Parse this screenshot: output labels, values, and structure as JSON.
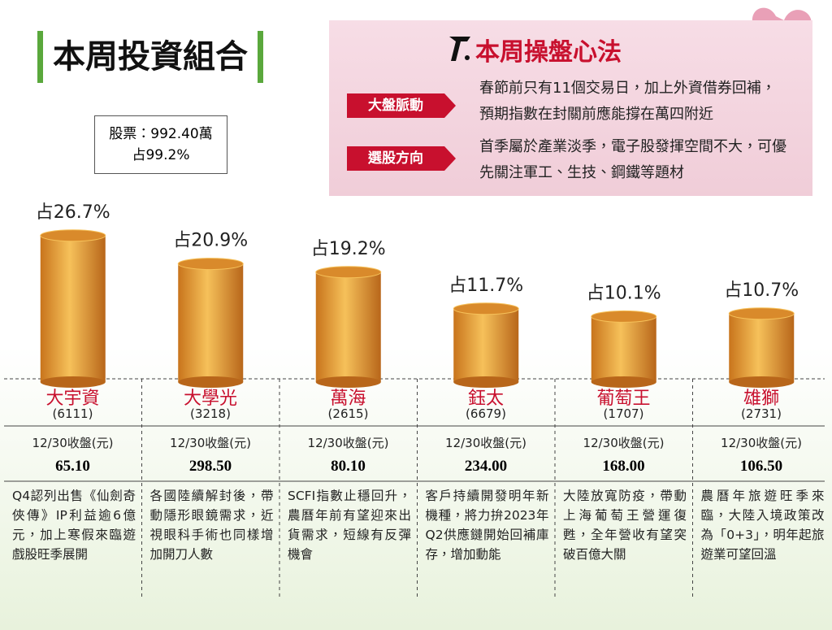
{
  "header": {
    "title": "本周投資組合",
    "holding": "股票：992.40萬",
    "holding_share": "占99.2%"
  },
  "strategy": {
    "title": "本周操盤心法",
    "items": [
      {
        "label": "大盤脈動",
        "text": "春節前只有11個交易日，加上外資借券回補，預期指數在封關前應能撐在萬四附近"
      },
      {
        "label": "選股方向",
        "text": "首季屬於產業淡季，電子股發揮空間不大，可優先關注軍工、生技、鋼鐵等題材"
      }
    ]
  },
  "chart_data": {
    "type": "bar",
    "color": "#d98a2b",
    "categories": [
      "大宇資",
      "大學光",
      "萬海",
      "鈺太",
      "葡萄王",
      "雄獅"
    ],
    "codes": [
      "(6111)",
      "(3218)",
      "(2615)",
      "(6679)",
      "(1707)",
      "(2731)"
    ],
    "values": [
      26.7,
      20.9,
      19.2,
      11.7,
      10.1,
      10.7
    ],
    "value_labels": [
      "占26.7%",
      "占20.9%",
      "占19.2%",
      "占11.7%",
      "占10.1%",
      "占10.7%"
    ],
    "price_label": "12/30收盤(元)",
    "prices": [
      "65.10",
      "298.50",
      "80.10",
      "234.00",
      "168.00",
      "106.50"
    ],
    "notes": [
      "Q4認列出售《仙劍奇俠傳》IP利益逾6億元，加上寒假來臨遊戲股旺季展開",
      "各國陸續解封後，帶動隱形眼鏡需求，近視眼科手術也同樣增加開刀人數",
      "SCFI指數止穩回升，農曆年前有望迎來出貨需求，短線有反彈機會",
      "客戶持續開發明年新機種，將力拚2023年Q2供應鏈開始回補庫存，增加動能",
      "大陸放寬防疫，帶動上海葡萄王營運復甦，全年營收有望突破百億大關",
      "農曆年旅遊旺季來臨，大陸入境政策改為「0+3」，明年起旅遊業可望回溫"
    ]
  }
}
